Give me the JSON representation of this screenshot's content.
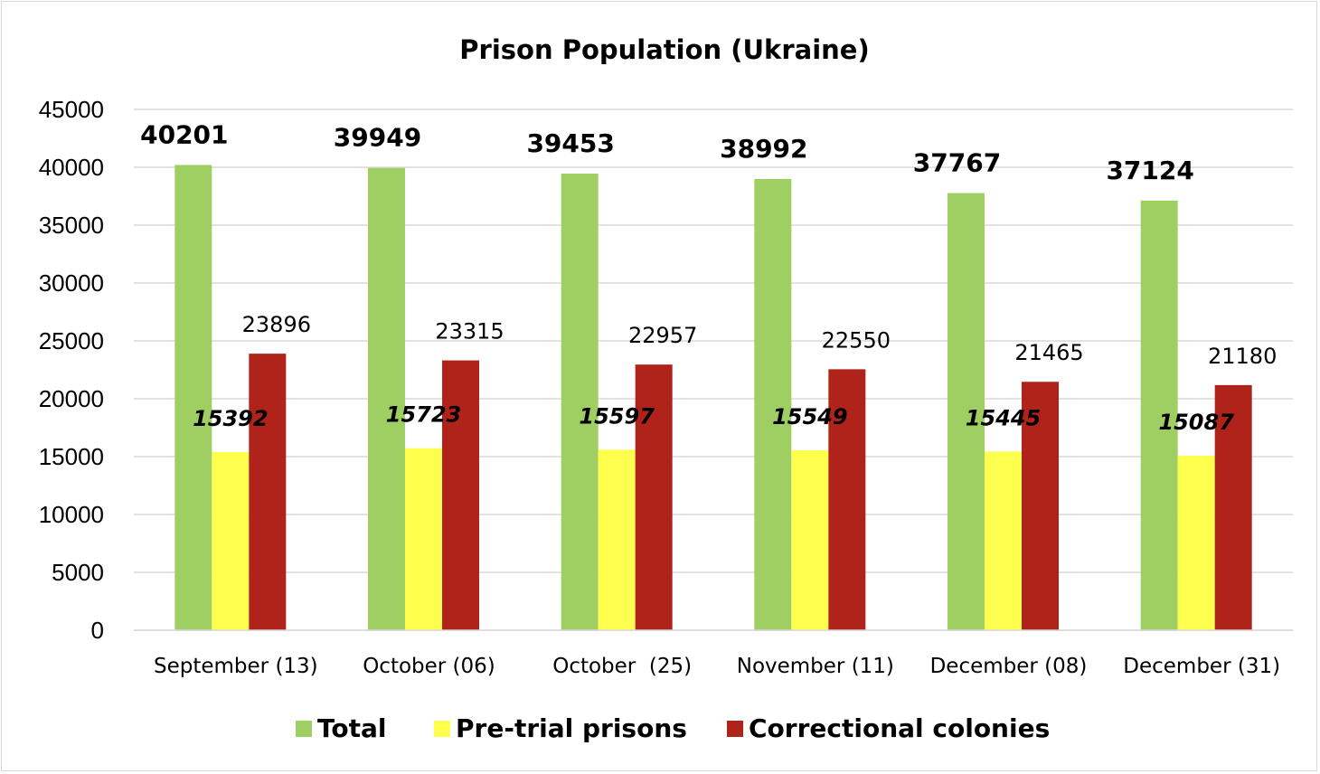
{
  "chart_data": {
    "type": "bar",
    "title": "Prison Population (Ukraine)",
    "categories": [
      "September (13)",
      "October (06)",
      "October  (25)",
      "November (11)",
      "December (08)",
      "December (31)"
    ],
    "series": [
      {
        "name": "Total",
        "color": "#9fcf63",
        "values": [
          40201,
          39949,
          39453,
          38992,
          37767,
          37124
        ]
      },
      {
        "name": "Pre-trial prisons",
        "color": "#ffff4d",
        "values": [
          15392,
          15723,
          15597,
          15549,
          15445,
          15087
        ]
      },
      {
        "name": "Correctional colonies",
        "color": "#b0231a",
        "values": [
          23896,
          23315,
          22957,
          22550,
          21465,
          21180
        ]
      }
    ],
    "ylim": [
      0,
      45000
    ],
    "yticks": [
      "0",
      "5000",
      "10000",
      "15000",
      "20000",
      "25000",
      "30000",
      "35000",
      "40000",
      "45000"
    ],
    "grid": true,
    "legend_position": "bottom",
    "gridline_color": "#d9d9d9"
  }
}
